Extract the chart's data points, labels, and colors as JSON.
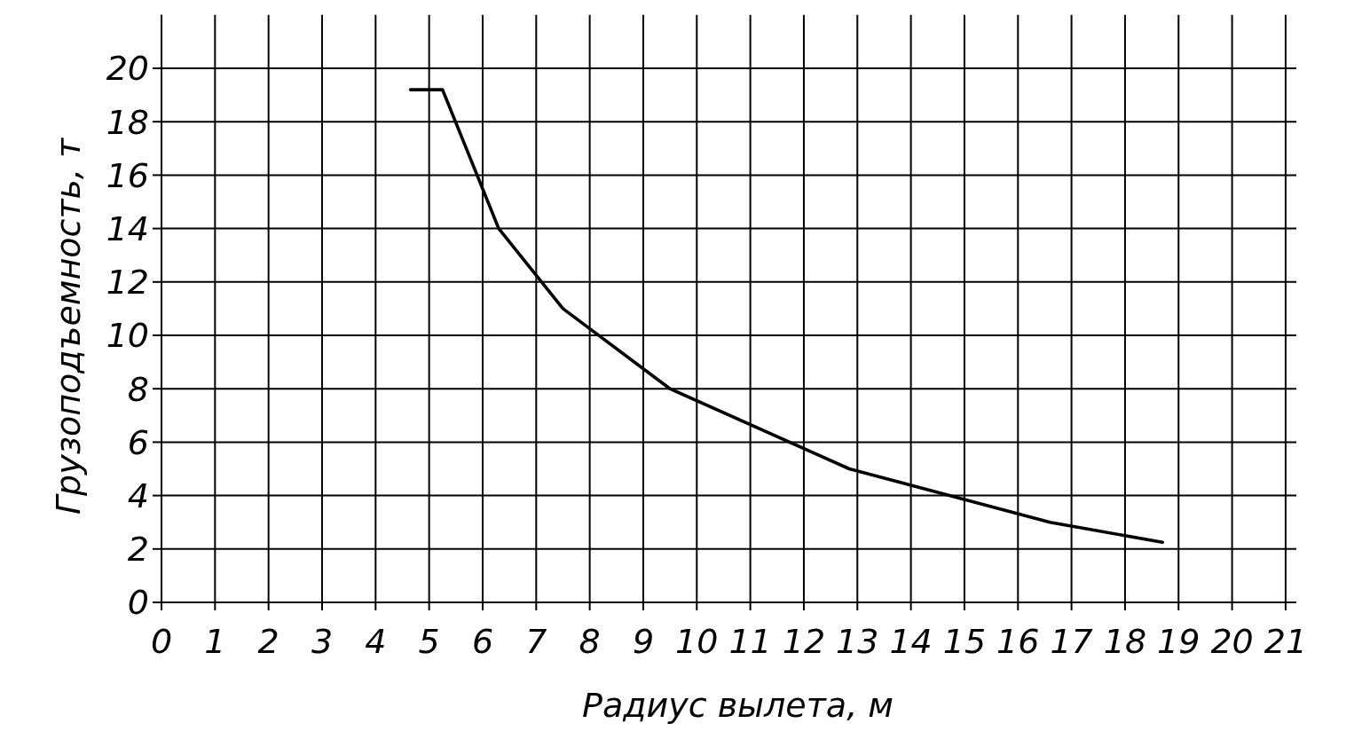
{
  "chart_data": {
    "type": "line",
    "xlabel": "Радиус вылета, м",
    "ylabel": "Грузоподъемность, т",
    "x": [
      4.65,
      5.25,
      6.3,
      7.5,
      9.5,
      12.85,
      16.6,
      18.7
    ],
    "values": [
      19.2,
      19.2,
      14,
      11,
      8,
      5,
      3,
      2.25
    ],
    "color": "#000000",
    "line_style": "solid",
    "xlim": [
      0,
      21.2
    ],
    "ylim": [
      0,
      22
    ],
    "xticks": [
      0,
      1,
      2,
      3,
      4,
      5,
      6,
      7,
      8,
      9,
      10,
      11,
      12,
      13,
      14,
      15,
      16,
      17,
      18,
      19,
      20,
      21
    ],
    "yticks": [
      0,
      2,
      4,
      6,
      8,
      10,
      12,
      14,
      16,
      18,
      20
    ],
    "grid": true
  }
}
